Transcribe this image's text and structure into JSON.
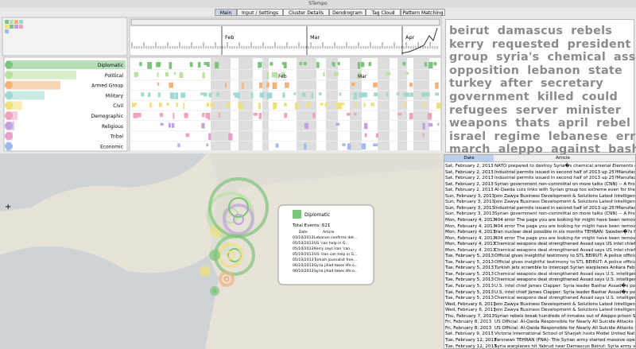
{
  "window": {
    "title": "STempo"
  },
  "tabs": [
    "Main",
    "Input / Settings",
    "Cluster Details",
    "Dendrogram",
    "Tag Cloud",
    "Pattern Matching"
  ],
  "timeline": {
    "top_months": [
      "Feb",
      "Mar",
      "Apr"
    ],
    "lower_months": [
      "Feb",
      "Mar"
    ]
  },
  "categories": [
    "Diplomatic",
    "Political",
    "Armed Group",
    "Military",
    "Civil",
    "Demographic",
    "Religious",
    "Tribal",
    "Economic"
  ],
  "tag_cloud": {
    "lines": [
      [
        "beirut",
        "damascus",
        "rebels"
      ],
      [
        "kerry",
        "requested",
        "president"
      ],
      [
        "group",
        "syria's",
        "chemical",
        "assad"
      ],
      [
        "opposition",
        "lebanon",
        "state"
      ],
      [
        "turkey",
        "after",
        "secretary"
      ],
      [
        "government",
        "killed",
        "could"
      ],
      [
        "refugees",
        "server",
        "minister"
      ],
      [
        "weapons",
        "thats",
        "april",
        "rebel"
      ],
      [
        "israel",
        "regime",
        "lebanese",
        "error"
      ],
      [
        "march",
        "aleppo",
        "against",
        "bashar"
      ]
    ]
  },
  "map_popup": {
    "title": "Diplomatic",
    "total": "Total Events: 621",
    "headers": [
      "Date",
      "Article"
    ],
    "rows": [
      [
        "03/10/2013",
        "Lebanon confirms det..."
      ],
      [
        "05/10/2013",
        "US 'can help in G..."
      ],
      [
        "05/10/2013",
        "Kerry says Iran 'can..."
      ],
      [
        "05/10/2013",
        "US: Iran can help in G..."
      ],
      [
        "05/10/2013",
        "Turkish journalist free..."
      ],
      [
        "06/10/2013",
        "Syria jihad takes life o..."
      ],
      [
        "06/10/2013",
        "Syria jihad takes life o..."
      ]
    ]
  },
  "articles": {
    "headers": [
      "Date",
      "Article"
    ],
    "rows": [
      [
        "Sat, February 2, 2013",
        "NATO prepared to destroy Syria�s chemical arsenal Elements of NAT"
      ],
      [
        "Sat, February 2, 2013",
        "Industrial permits issued in second half of 2013 up 25?Manufacturin"
      ],
      [
        "Sat, February 2, 2013",
        "Industrial permits issued in second half of 2013 up 25?Manufacturin"
      ],
      [
        "Sat, February 2, 2013",
        "Syrian government non-committal on more talks (CNN) -- A first rour"
      ],
      [
        "Sat, February 2, 2013",
        "Al-Qaeda cuts links with Syrian group too extreme even for them Al-"
      ],
      [
        "Sun, February 3, 2013",
        "Join Zawya Business Development & Solutions Latest Intelligence on In"
      ],
      [
        "Sun, February 3, 2013",
        "Join Zawya Business Development & Solutions Latest Intelligence on In"
      ],
      [
        "Sun, February 3, 2013",
        "Industrial permits issued in second half of 2013 up 25?Manufacturin"
      ],
      [
        "Sun, February 3, 2013",
        "Syrian government non-committal on more talks (CNN) -- A first rour"
      ],
      [
        "Mon, February 4, 2013",
        "404 error The page you are looking for might have been removed ha"
      ],
      [
        "Mon, February 4, 2013",
        "404 error The page you are looking for might have been removed ha"
      ],
      [
        "Mon, February 4, 2013",
        "Iran nuclear deal possible in six months TEHRAN: Sweden�?s foreig"
      ],
      [
        "Mon, February 4, 2013",
        "404 error The page you are looking for might have been removed ha"
      ],
      [
        "Mon, February 4, 2013",
        "Chemical weapons deal strengthened Assad says US intel chief Last y"
      ],
      [
        "Mon, February 4, 2013",
        "Chemical weapons deal strengthened Assad says US intel chief Last y"
      ],
      [
        "Tue, February 5, 2013",
        "Official gives insightful testimony to STL BEIRUT: A police official wh"
      ],
      [
        "Tue, February 5, 2013",
        "Official gives insightful testimony to STL BEIRUT: A police official wh"
      ],
      [
        "Tue, February 5, 2013",
        "Turkish jets scramble to intercept Syrian warplanes Ankara Feb 5 (A"
      ],
      [
        "Tue, February 5, 2013",
        "Chemical weapons deal strengthened Assad says U.S. intelligence chi"
      ],
      [
        "Tue, February 5, 2013",
        "Chemical weapons deal strengthened Assad says U.S. intelligence chi"
      ],
      [
        "Tue, February 5, 2013",
        "U.S. intel chief James Clapper: Syria leader Bashar Assad�s position"
      ],
      [
        "Tue, February 5, 2013",
        "U.S. intel chief James Clapper: Syria leader Bashar Assad�s position"
      ],
      [
        "Tue, February 5, 2013",
        "Chemical weapons deal strengthened Assad says U.S. intelligence chi"
      ],
      [
        "Wed, February 6, 2013",
        "Join Zawya Business Development & Solutions Latest Intelligence on In"
      ],
      [
        "Wed, February 6, 2013",
        "Join Zawya Business Development & Solutions Latest Intelligence on In"
      ],
      [
        "Thu, February 7, 2013",
        "Syrian rebels break hundreds of inmates out of Aleppo prison Syrian"
      ],
      [
        "Fri, February 8, 2013",
        "US Official: Al-Qaida Responsible for Nearly All Suicide Attacks in Ira"
      ],
      [
        "Fri, February 8, 2013",
        "US Official: Al-Qaida Responsible for Nearly All Suicide Attacks in Ira"
      ],
      [
        "Sat, February 9, 2013",
        "Victoria International School of Sharjah hosts Model United Nations co"
      ],
      [
        "Tue, February 12, 2013",
        "Farsnews TEHRAN (FNA)- The Syrian army started massive operation"
      ],
      [
        "Tue, February 12, 2013",
        "Syria warplanes hit Yabrud near Damascus Beirut: Syria army starts"
      ]
    ]
  }
}
